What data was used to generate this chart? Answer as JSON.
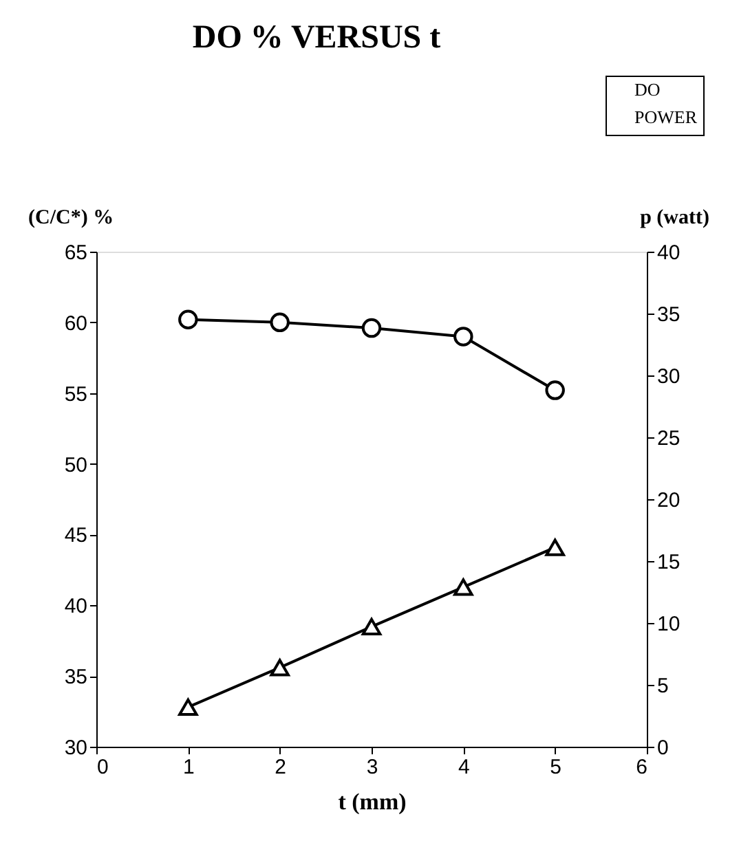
{
  "chart_data": {
    "type": "line",
    "title": "DO % VERSUS t",
    "xlabel": "t (mm)",
    "ylabel": "(C/C*) %",
    "y2label": "p (watt)",
    "x": [
      1,
      2,
      3,
      4,
      5
    ],
    "series": [
      {
        "name": "DO",
        "color": "#000000",
        "marker": "circle",
        "values": [
          60.2,
          60.0,
          59.6,
          59.0,
          55.2
        ]
      },
      {
        "name": "POWER",
        "color": "#000000",
        "marker": "triangle",
        "axis": "y2",
        "values": [
          3.2,
          6.4,
          9.7,
          12.9,
          16.1
        ]
      }
    ],
    "xlim": [
      0,
      6
    ],
    "xticks": [
      0,
      1,
      2,
      3,
      4,
      5,
      6
    ],
    "ylim": [
      30,
      65
    ],
    "yticks": [
      30,
      35,
      40,
      45,
      50,
      55,
      60,
      65
    ],
    "y2lim": [
      0,
      40
    ],
    "y2ticks": [
      0,
      5,
      10,
      15,
      20,
      25,
      30,
      35,
      40
    ],
    "grid": false,
    "legend": "top right",
    "line_style": "solid"
  }
}
